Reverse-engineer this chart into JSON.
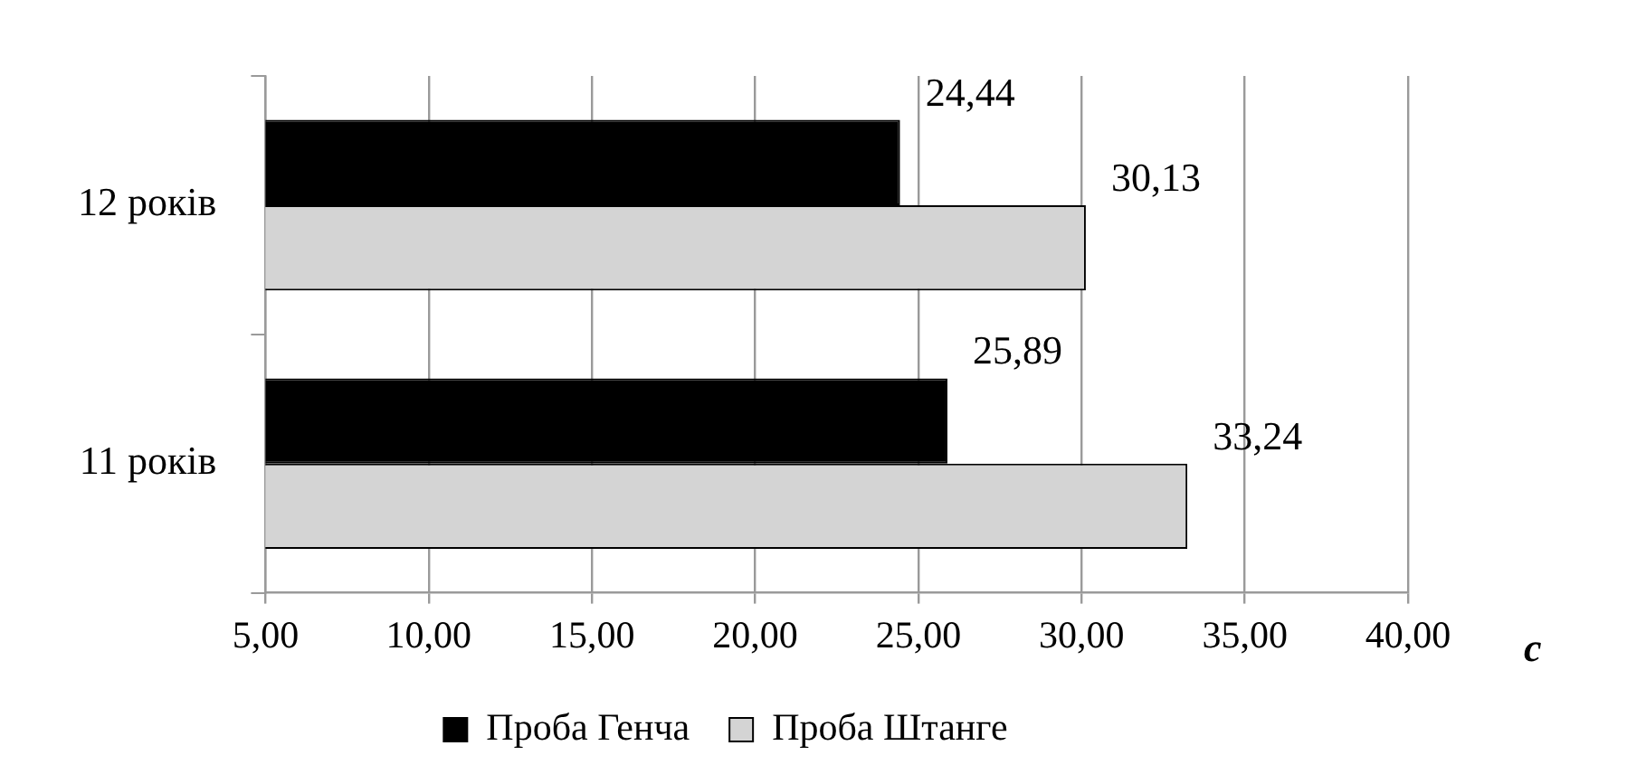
{
  "chart_data": {
    "type": "bar",
    "orientation": "horizontal",
    "xlabel": "с",
    "categories": [
      "12 років",
      "11 років"
    ],
    "series": [
      {
        "name": "Проба Генча",
        "color": "#000000",
        "values": [
          24.44,
          25.89
        ],
        "value_labels": [
          "24,44",
          "25,89"
        ]
      },
      {
        "name": "Проба Штанге",
        "color": "#d4d4d4",
        "values": [
          30.13,
          33.24
        ],
        "value_labels": [
          "30,13",
          "33,24"
        ]
      }
    ],
    "xlim": [
      5,
      40
    ],
    "xticks": [
      {
        "value": 5,
        "label": "5,00"
      },
      {
        "value": 10,
        "label": "10,00"
      },
      {
        "value": 15,
        "label": "15,00"
      },
      {
        "value": 20,
        "label": "20,00"
      },
      {
        "value": 25,
        "label": "25,00"
      },
      {
        "value": 30,
        "label": "30,00"
      },
      {
        "value": 35,
        "label": "35,00"
      },
      {
        "value": 40,
        "label": "40,00"
      }
    ],
    "grid": "x",
    "legend": "bottom"
  }
}
